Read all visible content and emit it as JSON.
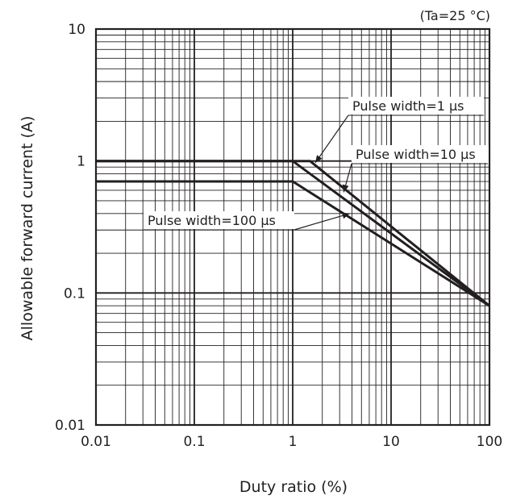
{
  "chart_data": {
    "type": "line",
    "xscale": "log",
    "yscale": "log",
    "xlim": [
      0.01,
      100
    ],
    "ylim": [
      0.01,
      10
    ],
    "xlabel": "Duty ratio (%)",
    "ylabel": "Allowable forward current (A)",
    "condition": "(Ta=25 °C)",
    "x_ticks": [
      "0.01",
      "0.1",
      "1",
      "10",
      "100"
    ],
    "y_ticks": [
      "0.01",
      "0.1",
      "1",
      "10"
    ],
    "grid": true,
    "series": [
      {
        "name": "Pulse width=1 µs",
        "x": [
          0.01,
          1.5,
          100
        ],
        "y": [
          1.0,
          1.0,
          0.08
        ]
      },
      {
        "name": "Pulse width=10 µs",
        "x": [
          0.01,
          1.0,
          100
        ],
        "y": [
          1.0,
          1.0,
          0.08
        ]
      },
      {
        "name": "Pulse width=100 µs",
        "x": [
          0.01,
          1.0,
          100
        ],
        "y": [
          0.7,
          0.7,
          0.08
        ]
      }
    ]
  }
}
